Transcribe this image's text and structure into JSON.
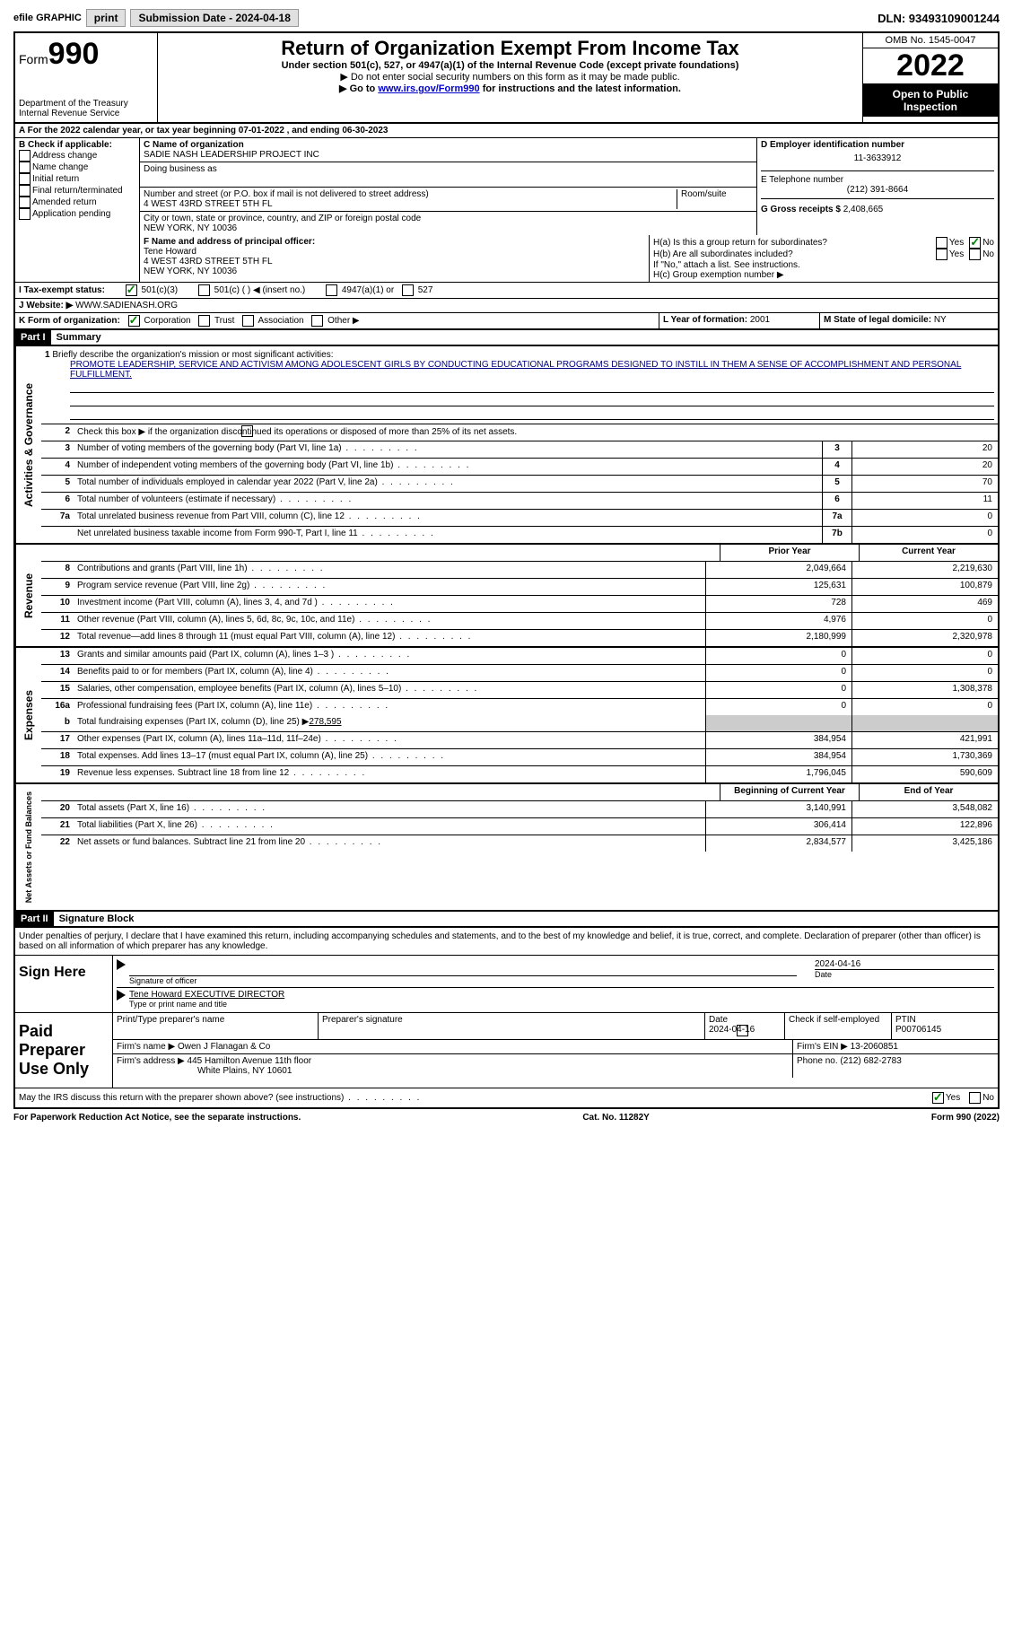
{
  "topbar": {
    "efile_label": "efile GRAPHIC",
    "print_btn": "print",
    "submission_label": "Submission Date - 2024-04-18",
    "dln": "DLN: 93493109001244"
  },
  "header": {
    "form_label": "Form",
    "form_num": "990",
    "dept": "Department of the Treasury",
    "irs": "Internal Revenue Service",
    "title": "Return of Organization Exempt From Income Tax",
    "subtitle": "Under section 501(c), 527, or 4947(a)(1) of the Internal Revenue Code (except private foundations)",
    "note1": "▶ Do not enter social security numbers on this form as it may be made public.",
    "note2_pre": "▶ Go to ",
    "note2_link": "www.irs.gov/Form990",
    "note2_post": " for instructions and the latest information.",
    "omb": "OMB No. 1545-0047",
    "year": "2022",
    "open_public": "Open to Public Inspection"
  },
  "lineA": {
    "text": "A For the 2022 calendar year, or tax year beginning 07-01-2022    , and ending 06-30-2023"
  },
  "sectionB": {
    "label": "B Check if applicable:",
    "opt1": "Address change",
    "opt2": "Name change",
    "opt3": "Initial return",
    "opt4": "Final return/terminated",
    "opt5": "Amended return",
    "opt6": "Application pending"
  },
  "sectionC": {
    "name_label": "C Name of organization",
    "name": "SADIE NASH LEADERSHIP PROJECT INC",
    "dba_label": "Doing business as",
    "addr_label": "Number and street (or P.O. box if mail is not delivered to street address)",
    "room_label": "Room/suite",
    "addr": "4 WEST 43RD STREET 5TH FL",
    "city_label": "City or town, state or province, country, and ZIP or foreign postal code",
    "city": "NEW YORK, NY  10036"
  },
  "sectionD": {
    "label": "D Employer identification number",
    "ein": "11-3633912"
  },
  "sectionE": {
    "label": "E Telephone number",
    "phone": "(212) 391-8664"
  },
  "sectionG": {
    "label": "G Gross receipts $",
    "amount": "2,408,665"
  },
  "sectionF": {
    "label": "F Name and address of principal officer:",
    "name": "Tene Howard",
    "addr1": "4 WEST 43RD STREET 5TH FL",
    "addr2": "NEW YORK, NY  10036"
  },
  "sectionH": {
    "ha": "H(a)  Is this a group return for subordinates?",
    "hb": "H(b)  Are all subordinates included?",
    "hb_note": "If \"No,\" attach a list. See instructions.",
    "hc": "H(c)  Group exemption number ▶",
    "yes": "Yes",
    "no": "No"
  },
  "sectionI": {
    "label": "I    Tax-exempt status:",
    "s501c3": "501(c)(3)",
    "s501c": "501(c) (  ) ◀ (insert no.)",
    "s4947": "4947(a)(1) or",
    "s527": "527"
  },
  "sectionJ": {
    "label": "J    Website: ▶",
    "url": "WWW.SADIENASH.ORG"
  },
  "sectionK": {
    "label": "K Form of organization:",
    "corp": "Corporation",
    "trust": "Trust",
    "assoc": "Association",
    "other": "Other ▶"
  },
  "sectionL": {
    "label": "L Year of formation:",
    "year": "2001"
  },
  "sectionM": {
    "label": "M State of legal domicile:",
    "state": "NY"
  },
  "part1": {
    "label": "Part I",
    "title": "Summary",
    "vert_ag": "Activities & Governance",
    "vert_rev": "Revenue",
    "vert_exp": "Expenses",
    "vert_na": "Net Assets or Fund Balances",
    "line1_label": "Briefly describe the organization's mission or most significant activities:",
    "line1_text": "PROMOTE LEADERSHIP, SERVICE AND ACTIVISM AMONG ADOLESCENT GIRLS BY CONDUCTING EDUCATIONAL PROGRAMS DESIGNED TO INSTILL IN THEM A SENSE OF ACCOMPLISHMENT AND PERSONAL FULFILLMENT.",
    "line2": "Check this box ▶        if the organization discontinued its operations or disposed of more than 25% of its net assets.",
    "lines": [
      {
        "num": "3",
        "desc": "Number of voting members of the governing body (Part VI, line 1a)",
        "box": "3",
        "v2": "20"
      },
      {
        "num": "4",
        "desc": "Number of independent voting members of the governing body (Part VI, line 1b)",
        "box": "4",
        "v2": "20"
      },
      {
        "num": "5",
        "desc": "Total number of individuals employed in calendar year 2022 (Part V, line 2a)",
        "box": "5",
        "v2": "70"
      },
      {
        "num": "6",
        "desc": "Total number of volunteers (estimate if necessary)",
        "box": "6",
        "v2": "11"
      },
      {
        "num": "7a",
        "desc": "Total unrelated business revenue from Part VIII, column (C), line 12",
        "box": "7a",
        "v2": "0"
      },
      {
        "num": "",
        "desc": "Net unrelated business taxable income from Form 990-T, Part I, line 11",
        "box": "7b",
        "v2": "0"
      }
    ],
    "col_prior": "Prior Year",
    "col_current": "Current Year",
    "rev_lines": [
      {
        "num": "8",
        "desc": "Contributions and grants (Part VIII, line 1h)",
        "v1": "2,049,664",
        "v2": "2,219,630"
      },
      {
        "num": "9",
        "desc": "Program service revenue (Part VIII, line 2g)",
        "v1": "125,631",
        "v2": "100,879"
      },
      {
        "num": "10",
        "desc": "Investment income (Part VIII, column (A), lines 3, 4, and 7d )",
        "v1": "728",
        "v2": "469"
      },
      {
        "num": "11",
        "desc": "Other revenue (Part VIII, column (A), lines 5, 6d, 8c, 9c, 10c, and 11e)",
        "v1": "4,976",
        "v2": "0"
      },
      {
        "num": "12",
        "desc": "Total revenue—add lines 8 through 11 (must equal Part VIII, column (A), line 12)",
        "v1": "2,180,999",
        "v2": "2,320,978"
      }
    ],
    "exp_lines": [
      {
        "num": "13",
        "desc": "Grants and similar amounts paid (Part IX, column (A), lines 1–3 )",
        "v1": "0",
        "v2": "0"
      },
      {
        "num": "14",
        "desc": "Benefits paid to or for members (Part IX, column (A), line 4)",
        "v1": "0",
        "v2": "0"
      },
      {
        "num": "15",
        "desc": "Salaries, other compensation, employee benefits (Part IX, column (A), lines 5–10)",
        "v1": "0",
        "v2": "1,308,378"
      },
      {
        "num": "16a",
        "desc": "Professional fundraising fees (Part IX, column (A), line 11e)",
        "v1": "0",
        "v2": "0"
      }
    ],
    "line_b": "Total fundraising expenses (Part IX, column (D), line 25) ▶",
    "line_b_val": "278,595",
    "exp_lines2": [
      {
        "num": "17",
        "desc": "Other expenses (Part IX, column (A), lines 11a–11d, 11f–24e)",
        "v1": "384,954",
        "v2": "421,991"
      },
      {
        "num": "18",
        "desc": "Total expenses. Add lines 13–17 (must equal Part IX, column (A), line 25)",
        "v1": "384,954",
        "v2": "1,730,369"
      },
      {
        "num": "19",
        "desc": "Revenue less expenses. Subtract line 18 from line 12",
        "v1": "1,796,045",
        "v2": "590,609"
      }
    ],
    "col_begin": "Beginning of Current Year",
    "col_end": "End of Year",
    "na_lines": [
      {
        "num": "20",
        "desc": "Total assets (Part X, line 16)",
        "v1": "3,140,991",
        "v2": "3,548,082"
      },
      {
        "num": "21",
        "desc": "Total liabilities (Part X, line 26)",
        "v1": "306,414",
        "v2": "122,896"
      },
      {
        "num": "22",
        "desc": "Net assets or fund balances. Subtract line 21 from line 20",
        "v1": "2,834,577",
        "v2": "3,425,186"
      }
    ]
  },
  "part2": {
    "label": "Part II",
    "title": "Signature Block",
    "declaration": "Under penalties of perjury, I declare that I have examined this return, including accompanying schedules and statements, and to the best of my knowledge and belief, it is true, correct, and complete. Declaration of preparer (other than officer) is based on all information of which preparer has any knowledge.",
    "sign_here": "Sign Here",
    "sig_officer": "Signature of officer",
    "sig_date": "2024-04-16",
    "date_label": "Date",
    "officer_name": "Tene Howard EXECUTIVE DIRECTOR",
    "type_name": "Type or print name and title",
    "paid_prep": "Paid Preparer Use Only",
    "prep_name_label": "Print/Type preparer's name",
    "prep_sig_label": "Preparer's signature",
    "prep_date_label": "Date",
    "prep_date": "2024-04-16",
    "check_self": "Check         if self-employed",
    "ptin_label": "PTIN",
    "ptin": "P00706145",
    "firm_name_label": "Firm's name    ▶",
    "firm_name": "Owen J Flanagan & Co",
    "firm_ein_label": "Firm's EIN ▶",
    "firm_ein": "13-2060851",
    "firm_addr_label": "Firm's address ▶",
    "firm_addr1": "445 Hamilton Avenue 11th floor",
    "firm_addr2": "White Plains, NY  10601",
    "phone_label": "Phone no.",
    "phone": "(212) 682-2783",
    "may_irs": "May the IRS discuss this return with the preparer shown above? (see instructions)",
    "yes": "Yes",
    "no": "No"
  },
  "footer": {
    "left": "For Paperwork Reduction Act Notice, see the separate instructions.",
    "mid": "Cat. No. 11282Y",
    "right": "Form 990 (2022)"
  }
}
